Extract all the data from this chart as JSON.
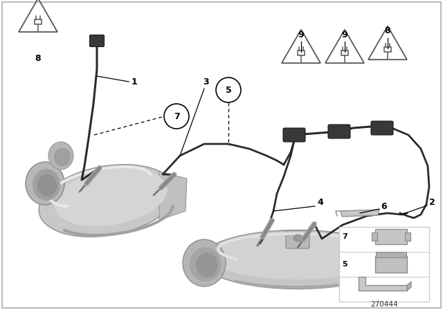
{
  "bg_color": "#ffffff",
  "fig_width": 6.4,
  "fig_height": 4.48,
  "dpi": 100,
  "diagram_id": "270444",
  "line_color": "#1a1a1a",
  "label_fontsize": 9,
  "label_fontweight": "bold",
  "cat_color_main": "#c8c8c8",
  "cat_color_shade": "#b0b0b0",
  "cat_color_light": "#dcdcdc",
  "cat_color_dark": "#989898",
  "wire_color": "#2a2a2a",
  "connector_color": "#383838",
  "triangle_color": "#555555",
  "sensor_color_tip": "#888888",
  "sensor_color_body": "#aaaaaa",
  "leader_color": "#000000"
}
